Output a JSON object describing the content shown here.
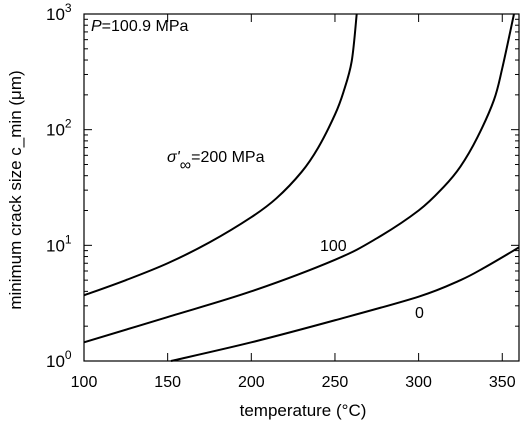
{
  "chart_data": {
    "type": "line",
    "xlabel": "temperature (°C)",
    "ylabel": "minimum crack size c_min (μm)",
    "xlim": [
      100,
      360
    ],
    "ylim": [
      1,
      1000
    ],
    "yscale": "log",
    "grid": false,
    "xticks": [
      100,
      150,
      200,
      250,
      300,
      350
    ],
    "yticks": [
      {
        "value": 1,
        "base": "10",
        "exp": "0"
      },
      {
        "value": 10,
        "base": "10",
        "exp": "1"
      },
      {
        "value": 100,
        "base": "10",
        "exp": "2"
      },
      {
        "value": 1000,
        "base": "10",
        "exp": "3"
      }
    ],
    "annotation": {
      "symbol": "P",
      "text": "=100.9 MPa"
    },
    "series": [
      {
        "label": {
          "text": "=200 MPa",
          "symbol": "σ'",
          "subscript": "∞"
        },
        "x": [
          100,
          125,
          150,
          175,
          200,
          215,
          230,
          240,
          250,
          255,
          260,
          263
        ],
        "y": [
          3.7,
          5.0,
          7.0,
          10.6,
          17.5,
          25.5,
          43,
          70,
          135,
          210,
          390,
          1000
        ]
      },
      {
        "label": {
          "text": "100"
        },
        "x": [
          100,
          150,
          200,
          250,
          275,
          300,
          315,
          325,
          335,
          345,
          350,
          357
        ],
        "y": [
          1.45,
          2.4,
          4.0,
          7.5,
          11.5,
          20,
          32,
          48,
          85,
          180,
          340,
          1000
        ]
      },
      {
        "label": {
          "text": "0"
        },
        "x": [
          152,
          200,
          250,
          300,
          325,
          340,
          360
        ],
        "y": [
          1.0,
          1.45,
          2.25,
          3.6,
          5.0,
          6.5,
          9.6
        ]
      }
    ]
  }
}
